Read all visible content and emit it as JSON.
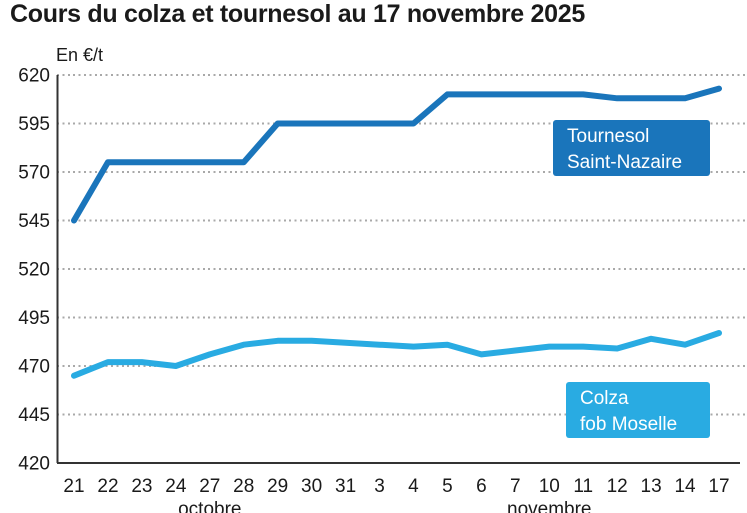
{
  "title": "Cours du colza et tournesol au 17 novembre 2025",
  "unit_label": "En €/t",
  "colors": {
    "tournesol": "#1a75bb",
    "colza": "#29abe2",
    "grid": "#a9a9a9",
    "axis": "#333333",
    "text": "#1a1a1a"
  },
  "legends": {
    "tournesol": {
      "line1": "Tournesol",
      "line2": "Saint-Nazaire"
    },
    "colza": {
      "line1": "Colza",
      "line2": "fob Moselle"
    }
  },
  "chart_data": {
    "type": "line",
    "title": "Cours du colza et tournesol au 17 novembre 2025",
    "xlabel": "",
    "ylabel": "En €/t",
    "ylim": [
      420,
      620
    ],
    "yticks": [
      620,
      595,
      570,
      545,
      520,
      495,
      470,
      445,
      420
    ],
    "grid": "dotted horizontal gridlines",
    "legend_position": "boxed labels inside plot, right side",
    "categories": [
      "21",
      "22",
      "23",
      "24",
      "27",
      "28",
      "29",
      "30",
      "31",
      "3",
      "4",
      "5",
      "6",
      "7",
      "10",
      "11",
      "12",
      "13",
      "14",
      "17"
    ],
    "month_groups": [
      {
        "label": "octobre",
        "from": 0,
        "to": 8
      },
      {
        "label": "novembre",
        "from": 9,
        "to": 19
      }
    ],
    "series": [
      {
        "name": "Tournesol Saint-Nazaire",
        "color": "#1a75bb",
        "values": [
          545,
          575,
          575,
          575,
          575,
          575,
          595,
          595,
          595,
          595,
          595,
          610,
          610,
          610,
          610,
          610,
          608,
          608,
          608,
          613
        ]
      },
      {
        "name": "Colza fob Moselle",
        "color": "#29abe2",
        "values": [
          465,
          472,
          472,
          470,
          476,
          481,
          483,
          483,
          482,
          481,
          480,
          481,
          476,
          478,
          480,
          480,
          479,
          484,
          481,
          487
        ]
      }
    ]
  }
}
